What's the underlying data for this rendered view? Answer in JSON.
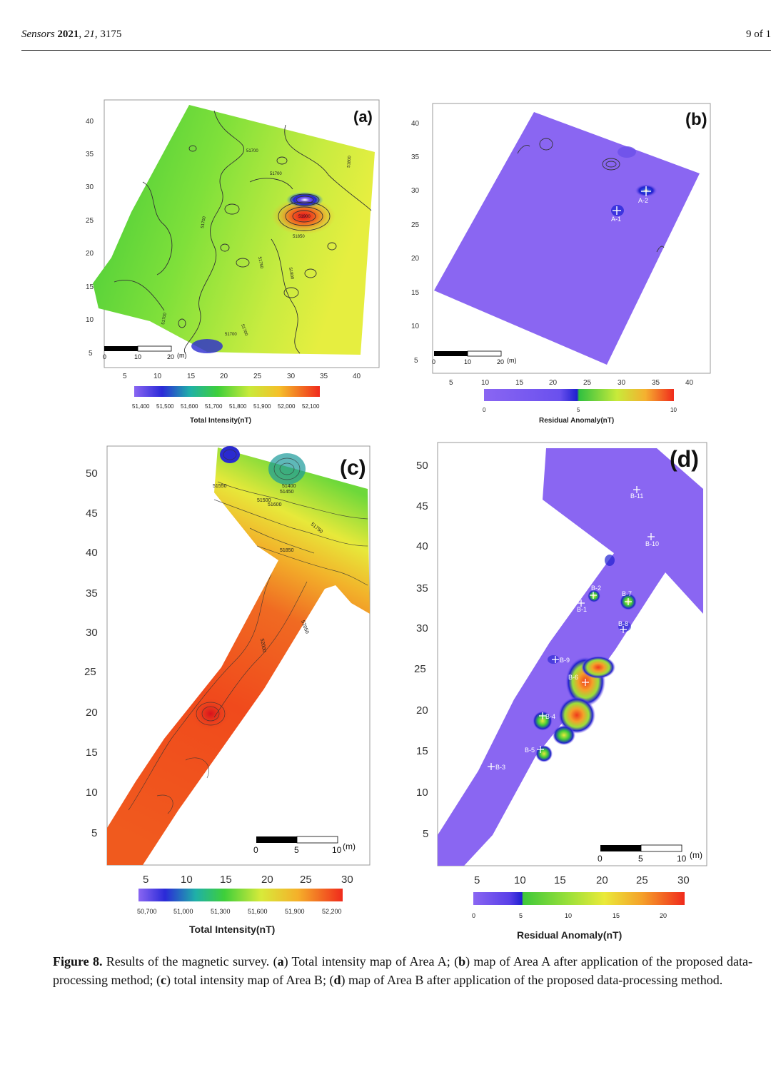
{
  "header": {
    "journal": "Sensors",
    "year": "2021",
    "volume": "21",
    "article": "3175",
    "page_label": "9 of 1"
  },
  "caption": {
    "figure_label": "Figure 8.",
    "intro": " Results of the magnetic survey. (",
    "a": "a",
    "a_text": ") Total intensity map of Area A; (",
    "b": "b",
    "b_text": ") map of Area A after application of the proposed data-processing method; (",
    "c": "c",
    "c_text": ") total intensity map of Area B; (",
    "d": "d",
    "d_text": ") map of Area B after application of the proposed data-processing method."
  },
  "panels": {
    "a": {
      "label": "(a)",
      "y_ticks": [
        "40",
        "35",
        "30",
        "25",
        "20",
        "15",
        "10",
        "5"
      ],
      "x_ticks": [
        "5",
        "10",
        "15",
        "20",
        "25",
        "30",
        "35",
        "40"
      ],
      "scale_labels": [
        "0",
        "10",
        "20",
        "(m)"
      ],
      "contours": [
        "51700",
        "51700",
        "51700",
        "51700",
        "51800",
        "51900",
        "51850",
        "51800",
        "51750",
        "51700",
        "51700",
        "51800"
      ],
      "colorbar_ticks": [
        "51,400",
        "51,500",
        "51,600",
        "51,700",
        "51,800",
        "51,900",
        "52,000",
        "52,100"
      ],
      "colorbar_title": "Total Intensity(nT)"
    },
    "b": {
      "label": "(b)",
      "y_ticks": [
        "40",
        "35",
        "30",
        "25",
        "20",
        "15",
        "10",
        "5"
      ],
      "x_ticks": [
        "5",
        "10",
        "15",
        "20",
        "25",
        "30",
        "35",
        "40"
      ],
      "scale_labels": [
        "0",
        "10",
        "20",
        "(m)"
      ],
      "markers": [
        "A-1",
        "A-2"
      ],
      "colorbar_ticks": [
        "0",
        "5",
        "10"
      ],
      "colorbar_title": "Residual Anomaly(nT)"
    },
    "c": {
      "label": "(c)",
      "y_ticks": [
        "50",
        "45",
        "40",
        "35",
        "30",
        "25",
        "20",
        "15",
        "10",
        "5"
      ],
      "x_ticks": [
        "5",
        "10",
        "15",
        "20",
        "25",
        "30"
      ],
      "scale_labels": [
        "0",
        "5",
        "10",
        "(m)"
      ],
      "contours": [
        "51550",
        "51400",
        "51450",
        "51500",
        "51600",
        "51750",
        "51850",
        "52050",
        "52000"
      ],
      "colorbar_ticks": [
        "50,700",
        "51,000",
        "51,300",
        "51,600",
        "51,900",
        "52,200"
      ],
      "colorbar_title": "Total Intensity(nT)"
    },
    "d": {
      "label": "(d)",
      "y_ticks": [
        "50",
        "45",
        "40",
        "35",
        "30",
        "25",
        "20",
        "15",
        "10",
        "5"
      ],
      "x_ticks": [
        "5",
        "10",
        "15",
        "20",
        "25",
        "30"
      ],
      "scale_labels": [
        "0",
        "5",
        "10",
        "(m)"
      ],
      "markers": [
        "B-11",
        "B-10",
        "B-2",
        "B-7",
        "B-1",
        "B-8",
        "B-9",
        "B-6",
        "B-4",
        "B-5",
        "B-3"
      ],
      "colorbar_ticks": [
        "0",
        "5",
        "10",
        "15",
        "20"
      ],
      "colorbar_title": "Residual Anomaly(nT)"
    }
  },
  "colors": {
    "purple": "#8a66f2",
    "green": "#5fd23a",
    "yellow": "#e8e83a",
    "red": "#f03a1c"
  }
}
